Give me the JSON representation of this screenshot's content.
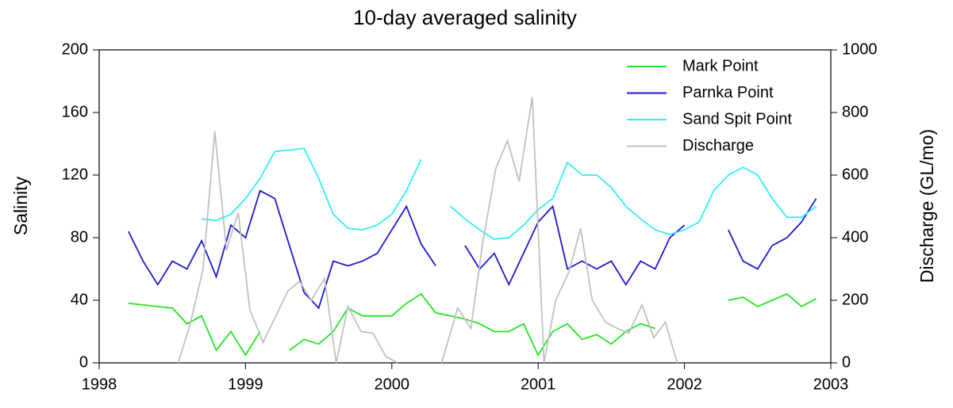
{
  "chart_data": {
    "type": "line",
    "title": "10-day averaged salinity",
    "ylabel": "Salinity",
    "y2label": "Discharge (GL/mo)",
    "xlim": [
      1998,
      2003
    ],
    "xticks": [
      1998,
      1999,
      2000,
      2001,
      2002,
      2003
    ],
    "ylim": [
      0,
      200
    ],
    "yticks": [
      0,
      40,
      80,
      120,
      160,
      200
    ],
    "y2lim": [
      0,
      1000
    ],
    "y2ticks": [
      0,
      200,
      400,
      600,
      800,
      1000
    ],
    "legend": "upper right",
    "x": [
      1998.2,
      1998.3,
      1998.4,
      1998.5,
      1998.6,
      1998.7,
      1998.8,
      1998.9,
      1999.0,
      1999.1,
      1999.2,
      1999.3,
      1999.4,
      1999.5,
      1999.6,
      1999.7,
      1999.8,
      1999.9,
      2000.0,
      2000.1,
      2000.2,
      2000.3,
      2000.4,
      2000.5,
      2000.6,
      2000.7,
      2000.8,
      2000.9,
      2001.0,
      2001.1,
      2001.2,
      2001.3,
      2001.4,
      2001.5,
      2001.6,
      2001.7,
      2001.8,
      2001.9,
      2002.0,
      2002.1,
      2002.2,
      2002.3,
      2002.4,
      2002.5,
      2002.6,
      2002.7,
      2002.8,
      2002.9
    ],
    "series": [
      {
        "name": "Mark Point",
        "color": "#22e622",
        "values": [
          38,
          37,
          36,
          35,
          25,
          30,
          8,
          20,
          5,
          20,
          null,
          8,
          15,
          12,
          20,
          35,
          30,
          30,
          30,
          38,
          44,
          32,
          30,
          28,
          25,
          20,
          20,
          25,
          5,
          20,
          25,
          15,
          18,
          12,
          20,
          25,
          22,
          null,
          null,
          null,
          null,
          40,
          42,
          36,
          40,
          44,
          36,
          41
        ]
      },
      {
        "name": "Parnka Point",
        "color": "#1a1ad0",
        "values": [
          84,
          65,
          50,
          65,
          60,
          78,
          55,
          88,
          80,
          110,
          105,
          75,
          45,
          35,
          65,
          62,
          65,
          70,
          85,
          100,
          76,
          62,
          null,
          75,
          60,
          70,
          50,
          70,
          90,
          100,
          60,
          65,
          60,
          65,
          50,
          65,
          60,
          80,
          88,
          null,
          null,
          85,
          65,
          60,
          75,
          80,
          90,
          105
        ]
      },
      {
        "name": "Sand Spit Point",
        "color": "#33eeee",
        "values": [
          null,
          null,
          null,
          null,
          null,
          92,
          91,
          95,
          105,
          118,
          135,
          136,
          137,
          118,
          95,
          86,
          85,
          88,
          95,
          110,
          130,
          null,
          100,
          92,
          85,
          79,
          80,
          88,
          98,
          105,
          128,
          120,
          120,
          112,
          100,
          92,
          85,
          82,
          85,
          90,
          110,
          120,
          125,
          120,
          105,
          93,
          93,
          100
        ]
      },
      {
        "name": "Discharge",
        "color": "#c0c0c0",
        "axis": "y2",
        "x": [
          1998.54,
          1998.62,
          1998.71,
          1998.79,
          1998.87,
          1998.95,
          1999.03,
          1999.12,
          1999.29,
          1999.37,
          1999.45,
          1999.54,
          1999.62,
          1999.7,
          1999.79,
          1999.87,
          1999.96,
          2000.04,
          2000.2,
          2000.34,
          2000.45,
          2000.54,
          2000.62,
          2000.71,
          2000.79,
          2000.87,
          2000.96,
          2001.04,
          2001.12,
          2001.21,
          2001.29,
          2001.37,
          2001.46,
          2001.54,
          2001.62,
          2001.71,
          2001.79,
          2001.87,
          2001.95
        ],
        "values": [
          0,
          120,
          300,
          740,
          360,
          480,
          170,
          65,
          230,
          260,
          200,
          270,
          0,
          180,
          100,
          95,
          20,
          0,
          null,
          0,
          175,
          110,
          380,
          620,
          710,
          580,
          850,
          0,
          200,
          290,
          430,
          200,
          130,
          110,
          95,
          185,
          80,
          130,
          0
        ]
      }
    ]
  }
}
